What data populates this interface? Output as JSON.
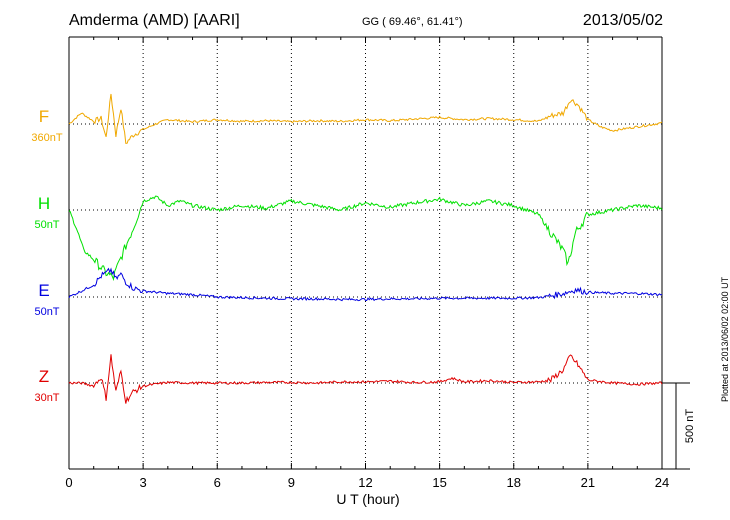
{
  "header": {
    "station": "Amderma (AMD)  [AARI]",
    "coords": "GG ( 69.46°,  61.41°)",
    "date": "2013/05/02"
  },
  "footer": {
    "plotted": "Plotted at 2013/06/02 02:00 UT",
    "scale_bar_label": "500 nT"
  },
  "colors": {
    "F": "#f0a800",
    "H": "#00e000",
    "E": "#0000e0",
    "Z": "#e00000",
    "axis": "#000000"
  },
  "chart_data": {
    "type": "line",
    "xlabel": "U T (hour)",
    "xlim": [
      0,
      24
    ],
    "xticks": [
      "0",
      "3",
      "6",
      "9",
      "12",
      "15",
      "18",
      "21",
      "24"
    ],
    "grid": true,
    "series": [
      {
        "name": "F",
        "scale_label": "360nT",
        "x": [
          0,
          0.5,
          1,
          1.3,
          1.5,
          1.7,
          1.9,
          2.1,
          2.3,
          2.6,
          3,
          3.5,
          4,
          5,
          6,
          7,
          8,
          9,
          10,
          11,
          12,
          13,
          14,
          15,
          16,
          17,
          18,
          19,
          19.5,
          20,
          20.3,
          20.6,
          21,
          21.5,
          22,
          23,
          24
        ],
        "y": [
          0,
          20,
          5,
          10,
          -25,
          55,
          -20,
          30,
          -35,
          -20,
          -10,
          0,
          8,
          4,
          8,
          5,
          6,
          4,
          6,
          5,
          8,
          6,
          9,
          12,
          8,
          10,
          8,
          5,
          15,
          20,
          45,
          35,
          8,
          -5,
          -12,
          -5,
          2
        ]
      },
      {
        "name": "H",
        "scale_label": "50nT",
        "x": [
          0,
          0.3,
          0.6,
          1,
          1.5,
          1.8,
          2.0,
          2.3,
          2.6,
          3,
          3.5,
          4,
          4.5,
          5,
          6,
          7,
          8,
          9,
          10,
          11,
          12,
          13,
          14,
          15,
          16,
          17,
          18,
          19,
          19.5,
          20,
          20.2,
          20.5,
          21,
          22,
          23,
          24
        ],
        "y": [
          0,
          -20,
          -45,
          -55,
          -70,
          -75,
          -60,
          -40,
          -20,
          10,
          15,
          5,
          10,
          5,
          0,
          5,
          2,
          10,
          5,
          0,
          8,
          3,
          8,
          12,
          5,
          10,
          5,
          -5,
          -25,
          -45,
          -60,
          -25,
          -5,
          0,
          5,
          2
        ]
      },
      {
        "name": "E",
        "scale_label": "50nT",
        "x": [
          0,
          0.5,
          1,
          1.3,
          1.5,
          1.7,
          1.9,
          2.1,
          2.3,
          2.6,
          3,
          4,
          5,
          6,
          7,
          8,
          9,
          10,
          11,
          12,
          13,
          14,
          15,
          16,
          17,
          18,
          19,
          19.5,
          20,
          20.5,
          21,
          22,
          23,
          24
        ],
        "y": [
          0,
          10,
          20,
          35,
          40,
          45,
          30,
          38,
          25,
          15,
          10,
          6,
          4,
          0,
          -1,
          -2,
          -3,
          -3,
          -4,
          -4,
          -3,
          -3,
          -2,
          -2,
          -2,
          -2,
          -1,
          2,
          6,
          12,
          8,
          6,
          6,
          4
        ]
      },
      {
        "name": "Z",
        "scale_label": "30nT",
        "x": [
          0,
          0.5,
          1,
          1.3,
          1.5,
          1.7,
          1.9,
          2.1,
          2.3,
          2.6,
          3,
          4,
          5,
          6,
          7,
          8,
          9,
          10,
          11,
          12,
          13,
          14,
          15,
          15.5,
          16,
          17,
          18,
          19,
          19.5,
          20,
          20.3,
          20.6,
          21,
          22,
          23,
          24
        ],
        "y": [
          0,
          0,
          -5,
          10,
          -25,
          45,
          -15,
          20,
          -30,
          -15,
          -5,
          1,
          0,
          0,
          0,
          1,
          1,
          0,
          2,
          2,
          3,
          1,
          2,
          8,
          2,
          4,
          1,
          2,
          5,
          22,
          45,
          30,
          5,
          0,
          -2,
          0
        ]
      }
    ]
  }
}
